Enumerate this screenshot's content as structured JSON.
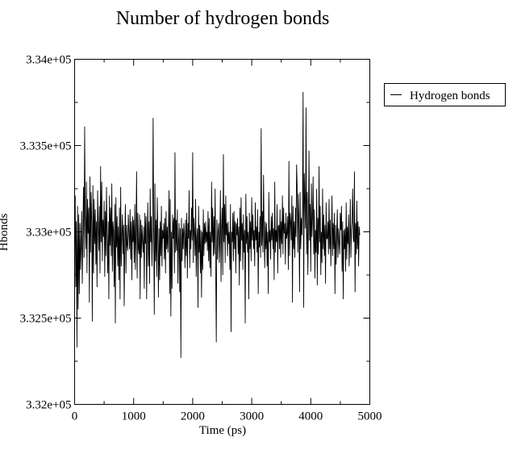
{
  "chart_data": {
    "type": "line",
    "title": "Number of hydrogen bonds",
    "xlabel": "Time (ps)",
    "ylabel": "Hbonds",
    "xlim": [
      0,
      5000
    ],
    "ylim": [
      332000,
      334000
    ],
    "x_ticks": [
      0,
      1000,
      2000,
      3000,
      4000,
      5000
    ],
    "x_tick_labels": [
      "0",
      "1000",
      "2000",
      "3000",
      "4000",
      "5000"
    ],
    "y_ticks": [
      332000,
      332500,
      333000,
      333500,
      334000
    ],
    "y_tick_labels": [
      "3.32e+05",
      "3.325e+05",
      "3.33e+05",
      "3.335e+05",
      "3.34e+05"
    ],
    "grid": false,
    "legend_position": "right",
    "line_color": "#000000",
    "series": [
      {
        "name": "Hydrogen bonds",
        "x_start": 0,
        "x_step": 10,
        "values": [
          332880,
          333210,
          332680,
          333060,
          332330,
          333150,
          332550,
          333100,
          332640,
          333050,
          332780,
          332920,
          333120,
          332700,
          332960,
          333260,
          332850,
          333610,
          333080,
          332900,
          333290,
          332760,
          333190,
          332990,
          333140,
          332590,
          333320,
          332880,
          333230,
          333050,
          332480,
          333270,
          332760,
          333190,
          332930,
          333130,
          332810,
          333060,
          332680,
          333240,
          333020,
          332890,
          333150,
          332760,
          333380,
          332940,
          333290,
          332830,
          333070,
          332970,
          333180,
          332740,
          333120,
          332860,
          333260,
          332990,
          332760,
          333060,
          332610,
          333210,
          332920,
          333140,
          332860,
          333280,
          332770,
          333060,
          333000,
          332680,
          333160,
          332470,
          333200,
          332910,
          333090,
          332800,
          333030,
          332720,
          333140,
          332610,
          333260,
          332800,
          332980,
          333100,
          332870,
          333040,
          332570,
          332950,
          333160,
          332760,
          333040,
          332920,
          332890,
          333100,
          332990,
          332900,
          333130,
          332840,
          333060,
          332720,
          333090,
          332940,
          333070,
          332820,
          333160,
          332780,
          332990,
          333350,
          332730,
          333110,
          332900,
          332870,
          333100,
          332610,
          333070,
          332850,
          333040,
          332950,
          332880,
          333030,
          332670,
          333110,
          332930,
          333090,
          332610,
          332990,
          333170,
          332800,
          333060,
          332700,
          333250,
          332940,
          333090,
          332800,
          333000,
          333660,
          332970,
          332520,
          333280,
          332830,
          333070,
          332740,
          333200,
          332990,
          332620,
          333020,
          332720,
          333060,
          332860,
          333150,
          332800,
          333010,
          332960,
          333050,
          332840,
          333080,
          332760,
          333120,
          332900,
          333030,
          332880,
          333010,
          333240,
          332640,
          333190,
          332510,
          333000,
          332670,
          333100,
          332960,
          333080,
          332760,
          333460,
          332880,
          333070,
          332890,
          333130,
          332700,
          332940,
          333050,
          332650,
          333020,
          332270,
          333080,
          332830,
          333020,
          332900,
          333050,
          332980,
          332790,
          333070,
          332860,
          333110,
          332730,
          333050,
          332960,
          333240,
          332790,
          333010,
          332900,
          333140,
          332950,
          333460,
          332820,
          333080,
          333000,
          332860,
          333190,
          332740,
          332960,
          333020,
          332560,
          333150,
          332880,
          333040,
          332760,
          333010,
          332620,
          333000,
          332780,
          333130,
          332860,
          333050,
          332930,
          333060,
          332940,
          333000,
          332890,
          333120,
          332830,
          333080,
          332790,
          333000,
          332740,
          333290,
          332940,
          333140,
          332860,
          333090,
          332870,
          333250,
          332780,
          332360,
          333070,
          332840,
          333000,
          333050,
          332820,
          332970,
          333240,
          332710,
          333030,
          333140,
          332750,
          333450,
          332940,
          333160,
          332820,
          333210,
          332980,
          333050,
          332860,
          333060,
          332930,
          333000,
          332780,
          333160,
          332420,
          333000,
          332940,
          333110,
          332830,
          333120,
          332900,
          333060,
          332760,
          333050,
          332980,
          333080,
          332870,
          333030,
          332690,
          333140,
          332830,
          333200,
          332950,
          333050,
          332780,
          333100,
          332880,
          333010,
          332470,
          333220,
          332930,
          333090,
          332880,
          333000,
          332610,
          333110,
          332900,
          333060,
          332830,
          333200,
          332950,
          333100,
          332900,
          333010,
          332800,
          333170,
          332950,
          333030,
          332880,
          333130,
          332640,
          333000,
          332910,
          333090,
          332850,
          333600,
          332920,
          333120,
          332880,
          333330,
          332990,
          332790,
          333060,
          332900,
          333050,
          332800,
          333000,
          332640,
          333230,
          332940,
          333010,
          332840,
          333090,
          332950,
          333110,
          332900,
          333020,
          332720,
          333290,
          332880,
          333010,
          332940,
          333160,
          332760,
          333030,
          333040,
          332900,
          333130,
          332850,
          333060,
          332930,
          333210,
          332870,
          333140,
          332990,
          333050,
          332810,
          333110,
          332960,
          332990,
          333090,
          332780,
          333410,
          332860,
          333110,
          333060,
          332950,
          333210,
          332590,
          333150,
          332900,
          333060,
          332850,
          333140,
          332970,
          333390,
          333260,
          332880,
          333220,
          333040,
          332650,
          333230,
          332900,
          333080,
          332980,
          333130,
          333810,
          332560,
          333340,
          333190,
          333020,
          333720,
          332870,
          333230,
          332750,
          333010,
          333470,
          332950,
          333160,
          332770,
          333280,
          332970,
          333090,
          333320,
          332870,
          333130,
          332730,
          333010,
          332880,
          333250,
          332690,
          333080,
          332870,
          333380,
          332940,
          333150,
          332750,
          333000,
          332820,
          333250,
          332900,
          333100,
          332860,
          333040,
          332700,
          333170,
          332960,
          332960,
          333060,
          332870,
          333190,
          332900,
          333070,
          332800,
          332980,
          333210,
          332860,
          333050,
          332900,
          333110,
          332640,
          333040,
          332810,
          332980,
          333130,
          332850,
          333020,
          332940,
          332870,
          333110,
          333010,
          333150,
          332770,
          333060,
          332610,
          333010,
          332900,
          333020,
          332770,
          333170,
          332840,
          333030,
          332930,
          333100,
          332800,
          332950,
          333190,
          332850,
          333010,
          333060,
          333250,
          332960,
          332940,
          333350,
          332650,
          333050,
          332870,
          333180,
          332900,
          333060,
          332800,
          333030,
          332980
        ]
      }
    ]
  }
}
